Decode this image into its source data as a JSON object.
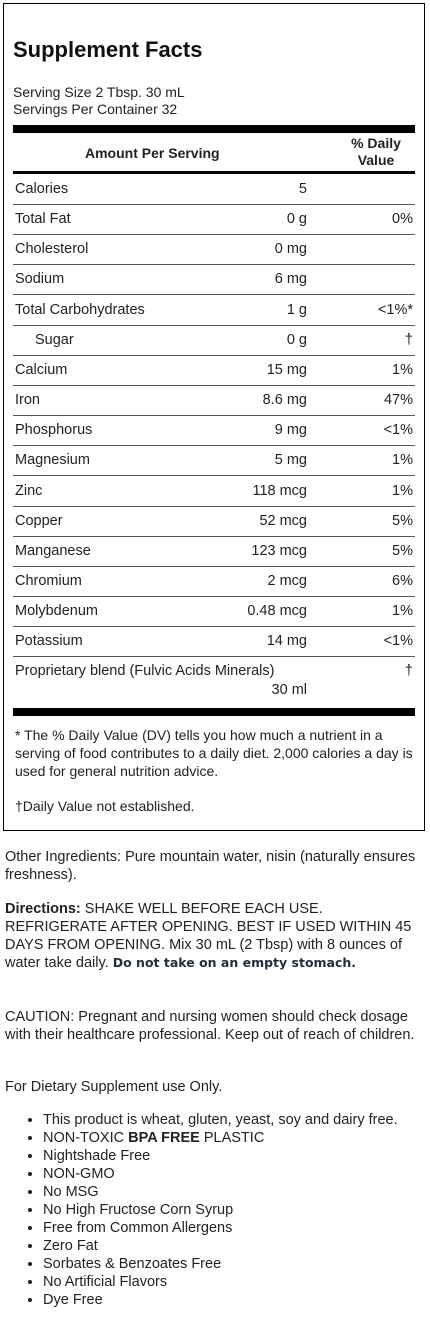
{
  "panel": {
    "title": "Supplement Facts",
    "serving_size": "Serving Size 2 Tbsp. 30 mL",
    "servings_per_container": "Servings Per Container 32",
    "header_amount": "Amount Per Serving",
    "header_dv_line1": "% Daily",
    "header_dv_line2": "Value",
    "rows": [
      {
        "name": "Calories",
        "amount": "5",
        "pct": "",
        "indent": false
      },
      {
        "name": "Total Fat",
        "amount": "0 g",
        "pct": "0%",
        "indent": false
      },
      {
        "name": "Cholesterol",
        "amount": "0 mg",
        "pct": "",
        "indent": false
      },
      {
        "name": "Sodium",
        "amount": "6 mg",
        "pct": "",
        "indent": false
      },
      {
        "name": "Total Carbohydrates",
        "amount": "1 g",
        "pct": "<1%*",
        "indent": false
      },
      {
        "name": "Sugar",
        "amount": "0 g",
        "pct": "†",
        "indent": true
      },
      {
        "name": "Calcium",
        "amount": "15 mg",
        "pct": "1%",
        "indent": false
      },
      {
        "name": "Iron",
        "amount": "8.6 mg",
        "pct": "47%",
        "indent": false
      },
      {
        "name": "Phosphorus",
        "amount": "9 mg",
        "pct": "<1%",
        "indent": false
      },
      {
        "name": "Magnesium",
        "amount": "5 mg",
        "pct": "1%",
        "indent": false
      },
      {
        "name": "Zinc",
        "amount": "118 mcg",
        "pct": "1%",
        "indent": false
      },
      {
        "name": "Copper",
        "amount": "52 mcg",
        "pct": "5%",
        "indent": false
      },
      {
        "name": "Manganese",
        "amount": "123 mcg",
        "pct": "5%",
        "indent": false
      },
      {
        "name": "Chromium",
        "amount": "2 mcg",
        "pct": "6%",
        "indent": false
      },
      {
        "name": "Molybdenum",
        "amount": "0.48 mcg",
        "pct": "1%",
        "indent": false
      },
      {
        "name": "Potassium",
        "amount": "14 mg",
        "pct": "<1%",
        "indent": false
      }
    ],
    "blend": {
      "name": "Proprietary blend (Fulvic Acids Minerals)",
      "amount": "30 ml",
      "pct": "†"
    },
    "footnote": "* The % Daily Value (DV) tells you how much a nutrient in a serving of food contributes to a daily diet. 2,000 calories a day is used for general nutrition advice.",
    "footnote2": "†Daily Value not established."
  },
  "other_ingredients": "Other Ingredients: Pure mountain water, nisin (naturally ensures freshness).",
  "directions": {
    "label": "Directions:",
    "text": " SHAKE WELL BEFORE EACH USE. REFRIGERATE AFTER OPENING. BEST IF USED WITHIN 45 DAYS FROM OPENING. Mix 30 mL (2 Tbsp) with 8 ounces of water take daily. ",
    "warning": "Do not take on an empty stomach."
  },
  "caution": "CAUTION: Pregnant and nursing women should check dosage with their healthcare professional. Keep out of reach of children.",
  "dietary": "For Dietary Supplement use Only.",
  "features": {
    "item1": "This product is wheat, gluten, yeast, soy and dairy free.",
    "item2_a": "NON-TOXIC ",
    "item2_b": "BPA FREE",
    "item2_c": " PLASTIC",
    "rest": [
      "Nightshade Free",
      "NON-GMO",
      "No MSG",
      "No High Fructose Corn Syrup",
      "Free from Common Allergens",
      "Zero Fat",
      "Sorbates & Benzoates Free",
      "No Artificial Flavors",
      "Dye Free"
    ]
  }
}
